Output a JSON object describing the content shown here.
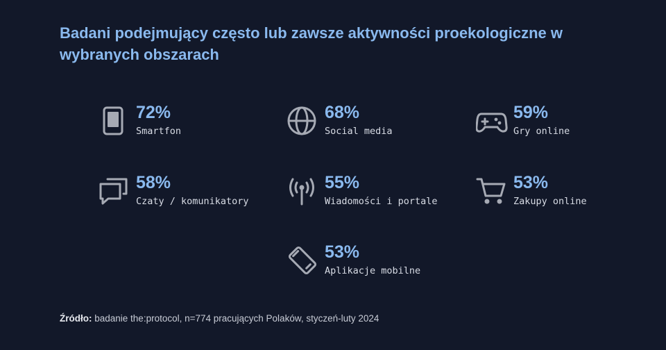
{
  "title": "Badani podejmujący często lub zawsze aktywności proekologiczne w wybranych obszarach",
  "chart_data": {
    "type": "table",
    "title": "Badani podejmujący często lub zawsze aktywności proekologiczne w wybranych obszarach",
    "unit": "%",
    "items": [
      {
        "label": "Smartfon",
        "value": 72,
        "value_text": "72%",
        "icon": "smartphone-icon"
      },
      {
        "label": "Social media",
        "value": 68,
        "value_text": "68%",
        "icon": "globe-icon"
      },
      {
        "label": "Gry online",
        "value": 59,
        "value_text": "59%",
        "icon": "gamepad-icon"
      },
      {
        "label": "Czaty / komunikatory",
        "value": 58,
        "value_text": "58%",
        "icon": "chat-bubbles-icon"
      },
      {
        "label": "Wiadomości i portale",
        "value": 55,
        "value_text": "55%",
        "icon": "antenna-icon"
      },
      {
        "label": "Zakupy online",
        "value": 53,
        "value_text": "53%",
        "icon": "shopping-cart-icon"
      },
      {
        "label": "Aplikacje mobilne",
        "value": 53,
        "value_text": "53%",
        "icon": "tilted-phone-icon"
      }
    ]
  },
  "source": {
    "prefix": "Źródło:",
    "text": " badanie the:protocol, n=774 pracujących Polaków, styczeń-luty 2024"
  },
  "colors": {
    "background": "#121829",
    "accent": "#8ab9ee",
    "icon": "#a6aab4",
    "label": "#d8dce5"
  }
}
